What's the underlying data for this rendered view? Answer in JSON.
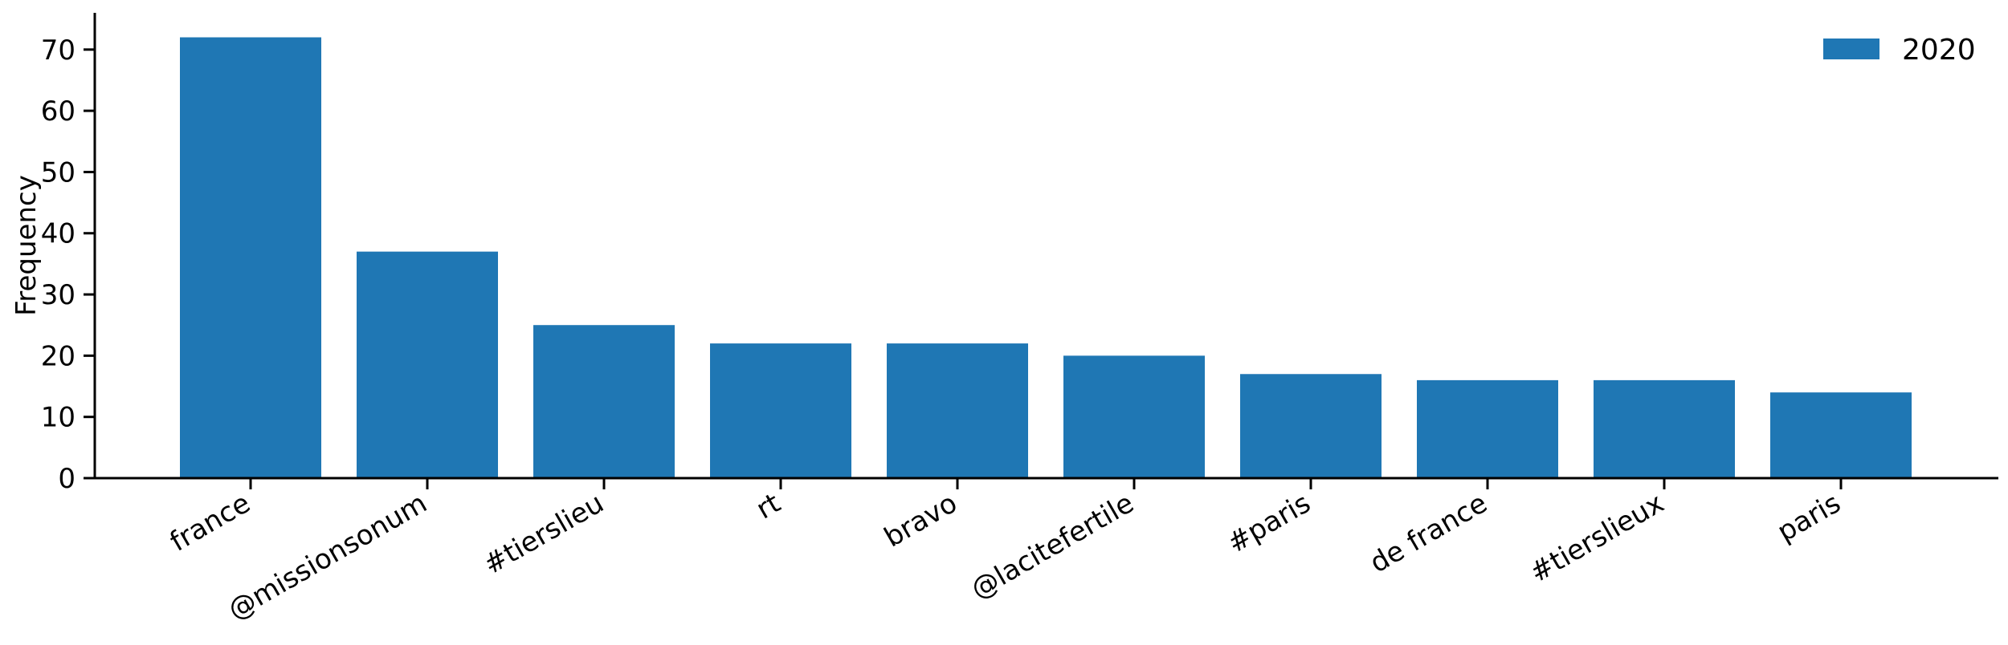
{
  "chart_data": {
    "type": "bar",
    "title": "",
    "xlabel": "",
    "ylabel": "Frequency",
    "categories": [
      "france",
      "@missionsonum",
      "#tierslieu",
      "rt",
      "bravo",
      "@lacitefertile",
      "#paris",
      "de france",
      "#tierslieux",
      "paris"
    ],
    "series": [
      {
        "name": "2020",
        "values": [
          72,
          37,
          25,
          22,
          22,
          20,
          17,
          16,
          16,
          14
        ],
        "color": "#1f77b4"
      }
    ],
    "ylim": [
      0,
      76
    ],
    "yticks": [
      0,
      10,
      20,
      30,
      40,
      50,
      60,
      70
    ],
    "grid": false,
    "legend": "top-right"
  }
}
